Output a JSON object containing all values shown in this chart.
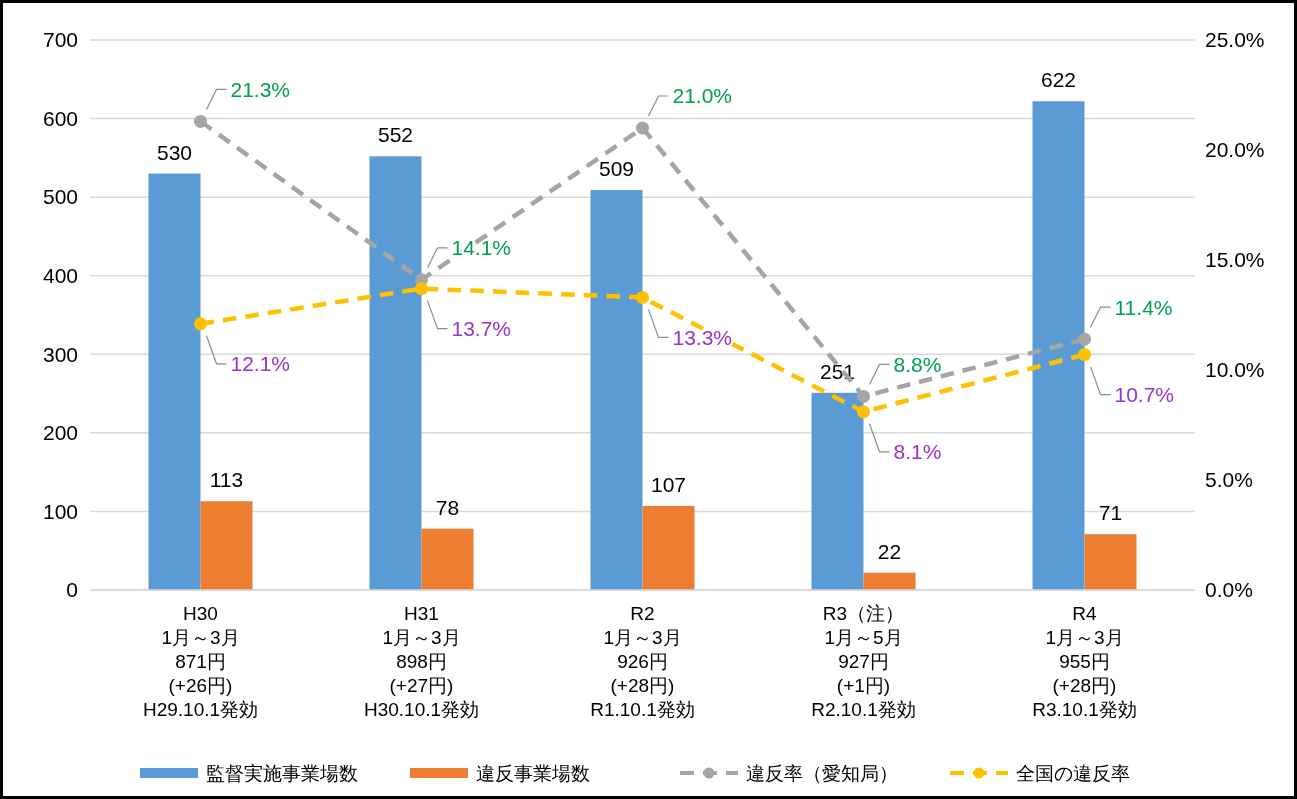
{
  "chart_data": {
    "type": "bar",
    "categories": [
      "H30\n1月～3月\n871円\n(+26円)\nH29.10.1発効",
      "H31\n1月～3月\n898円\n(+27円)\nH30.10.1発効",
      "R2\n1月～3月\n926円\n(+28円)\nR1.10.1発効",
      "R3（注）\n1月～5月\n927円\n(+1円)\nR2.10.1発効",
      "R4\n1月～3月\n955円\n(+28円)\nR3.10.1発効"
    ],
    "series": [
      {
        "name": "監督実施事業場数",
        "color": "#5b9bd5",
        "values": [
          530,
          552,
          509,
          251,
          622
        ]
      },
      {
        "name": "違反事業場数",
        "color": "#ed7d31",
        "values": [
          113,
          78,
          107,
          22,
          71
        ]
      },
      {
        "name": "違反率（愛知局）",
        "type": "line",
        "axis": "y2",
        "color": "#a5a5a5",
        "values": [
          21.3,
          14.1,
          21.0,
          8.8,
          11.4
        ],
        "value_labels": [
          "21.3%",
          "14.1%",
          "21.0%",
          "8.8%",
          "11.4%"
        ]
      },
      {
        "name": "全国の違反率",
        "type": "line",
        "axis": "y2",
        "color": "#ffc000",
        "values": [
          12.1,
          13.7,
          13.3,
          8.1,
          10.7
        ],
        "value_labels": [
          "12.1%",
          "13.7%",
          "13.3%",
          "8.1%",
          "10.7%"
        ]
      }
    ],
    "data_labels": true,
    "ylim": [
      0,
      700
    ],
    "yticks": [
      0,
      100,
      200,
      300,
      400,
      500,
      600,
      700
    ],
    "y2lim": [
      0,
      25
    ],
    "y2ticks": [
      {
        "value": 0,
        "label": "0.0%"
      },
      {
        "value": 5,
        "label": "5.0%"
      },
      {
        "value": 10,
        "label": "10.0%"
      },
      {
        "value": 15,
        "label": "15.0%"
      },
      {
        "value": 20,
        "label": "20.0%"
      },
      {
        "value": 25,
        "label": "25.0%"
      }
    ],
    "grid": "y",
    "legend": "bottom",
    "marker": "circle",
    "line_style": "dashed"
  }
}
